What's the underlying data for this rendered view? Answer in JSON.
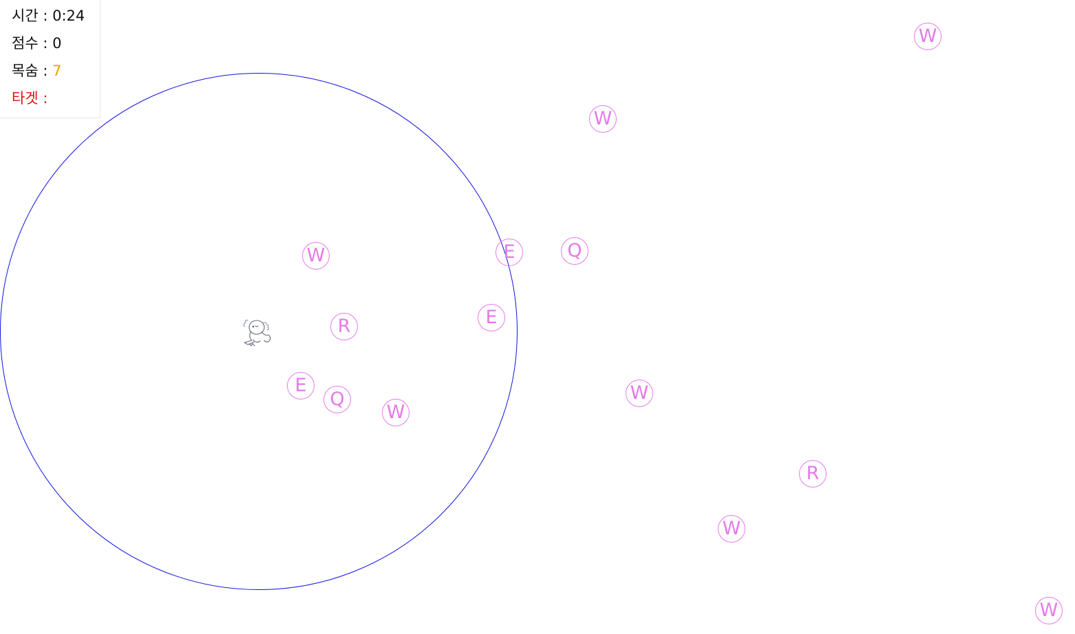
{
  "hud": {
    "time_label": "시간 :",
    "time_value": "0:24",
    "score_label": "점수 :",
    "score_value": "0",
    "lives_label": "목숨 :",
    "lives_value": "7",
    "target_label": "타겟 :",
    "target_value": ""
  },
  "colors": {
    "ring": "#1010e0",
    "enemy": "#e57ae8",
    "lives": "#e8a000",
    "target": "#e01010"
  },
  "player": {
    "icon": "axolotl-icon"
  },
  "enemies": [
    {
      "key": "W"
    },
    {
      "key": "W"
    },
    {
      "key": "E"
    },
    {
      "key": "Q"
    },
    {
      "key": "W"
    },
    {
      "key": "E"
    },
    {
      "key": "R"
    },
    {
      "key": "E"
    },
    {
      "key": "Q"
    },
    {
      "key": "W"
    },
    {
      "key": "W"
    },
    {
      "key": "R"
    },
    {
      "key": "W"
    },
    {
      "key": "W"
    }
  ]
}
